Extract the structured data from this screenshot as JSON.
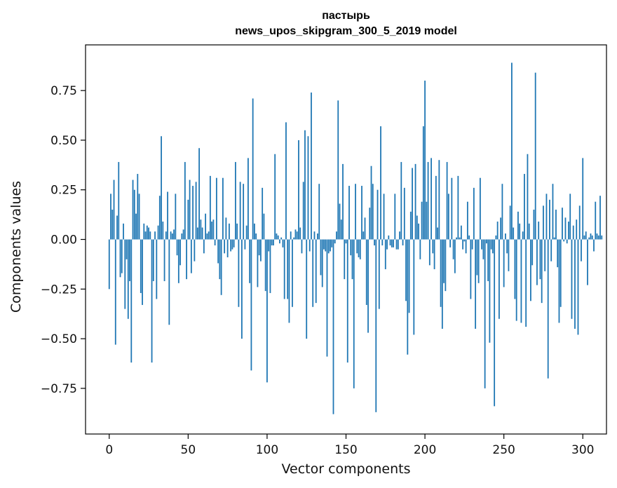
{
  "chart_data": {
    "type": "bar",
    "title": "пастырь",
    "subtitle": "news_upos_skipgram_300_5_2019 model",
    "xlabel": "Vector components",
    "ylabel": "Components values",
    "xlim": [
      -15,
      315
    ],
    "ylim": [
      -0.98,
      0.98
    ],
    "xticks": [
      0,
      50,
      100,
      150,
      200,
      250,
      300
    ],
    "yticks": [
      -0.75,
      -0.5,
      -0.25,
      0.0,
      0.25,
      0.5,
      0.75
    ],
    "ytick_labels": [
      "−0.75",
      "−0.50",
      "−0.25",
      "0.00",
      "0.25",
      "0.50",
      "0.75"
    ],
    "bar_color": "#1f77b4",
    "grid": false,
    "values": [
      -0.25,
      0.23,
      0.15,
      0.3,
      -0.53,
      0.12,
      0.39,
      -0.19,
      -0.17,
      0.08,
      -0.35,
      -0.1,
      -0.4,
      -0.21,
      -0.62,
      0.3,
      0.25,
      0.13,
      0.33,
      0.23,
      -0.27,
      -0.33,
      0.08,
      0.04,
      0.07,
      0.06,
      0.04,
      -0.62,
      -0.21,
      0.04,
      -0.3,
      0.07,
      0.22,
      0.52,
      0.09,
      -0.21,
      0.04,
      0.24,
      -0.43,
      0.04,
      0.03,
      0.05,
      0.23,
      -0.08,
      -0.22,
      -0.13,
      0.03,
      0.05,
      0.39,
      -0.2,
      0.2,
      0.3,
      -0.17,
      0.27,
      -0.11,
      0.29,
      0.06,
      0.46,
      0.1,
      0.06,
      -0.07,
      0.13,
      0.03,
      0.04,
      0.32,
      0.09,
      0.1,
      -0.03,
      0.31,
      -0.12,
      -0.2,
      -0.28,
      0.31,
      -0.07,
      0.11,
      -0.09,
      0.08,
      -0.06,
      -0.05,
      -0.04,
      0.39,
      0.08,
      -0.34,
      0.29,
      -0.5,
      0.28,
      -0.05,
      0.07,
      0.41,
      -0.22,
      -0.66,
      0.71,
      0.08,
      0.03,
      -0.24,
      -0.08,
      -0.11,
      0.26,
      0.13,
      -0.26,
      -0.72,
      -0.06,
      -0.27,
      -0.03,
      -0.03,
      0.43,
      0.03,
      0.02,
      -0.02,
      0.01,
      -0.04,
      -0.3,
      0.59,
      -0.3,
      -0.42,
      0.04,
      -0.34,
      0.01,
      0.05,
      0.04,
      0.5,
      0.06,
      -0.07,
      0.29,
      0.55,
      -0.5,
      0.52,
      -0.06,
      0.74,
      -0.34,
      0.04,
      -0.32,
      0.03,
      0.28,
      -0.18,
      -0.24,
      -0.05,
      -0.06,
      -0.59,
      -0.07,
      -0.06,
      -0.04,
      -0.88,
      -0.02,
      0.04,
      0.7,
      0.18,
      0.1,
      0.38,
      -0.2,
      -0.02,
      -0.62,
      0.27,
      -0.08,
      -0.2,
      -0.75,
      0.28,
      -0.07,
      -0.09,
      -0.1,
      0.27,
      0.04,
      0.11,
      -0.33,
      -0.47,
      0.16,
      0.37,
      0.28,
      -0.03,
      -0.87,
      0.25,
      -0.35,
      0.57,
      -0.03,
      0.23,
      -0.15,
      -0.05,
      0.02,
      -0.03,
      -0.04,
      -0.04,
      0.23,
      -0.05,
      -0.05,
      0.04,
      0.39,
      -0.03,
      0.26,
      -0.31,
      -0.58,
      -0.37,
      0.14,
      0.36,
      -0.48,
      0.38,
      0.12,
      0.08,
      -0.1,
      0.19,
      0.57,
      0.8,
      0.19,
      0.39,
      -0.13,
      0.41,
      -0.07,
      -0.15,
      0.32,
      0.06,
      0.4,
      -0.34,
      -0.45,
      -0.22,
      -0.26,
      0.39,
      0.23,
      -0.04,
      0.31,
      -0.1,
      -0.17,
      0.01,
      0.32,
      0.01,
      0.07,
      -0.05,
      -0.01,
      -0.07,
      0.19,
      0.02,
      -0.3,
      -0.05,
      0.26,
      -0.45,
      -0.18,
      -0.22,
      0.31,
      -0.05,
      -0.1,
      -0.75,
      -0.02,
      -0.21,
      -0.52,
      -0.05,
      -0.07,
      -0.84,
      0.02,
      0.09,
      -0.4,
      0.11,
      0.28,
      -0.24,
      0.03,
      -0.07,
      -0.16,
      0.17,
      0.89,
      0.06,
      -0.3,
      -0.41,
      0.14,
      0.08,
      -0.42,
      0.04,
      0.33,
      -0.44,
      0.43,
      0.08,
      -0.31,
      -0.13,
      0.15,
      0.84,
      -0.23,
      0.09,
      -0.2,
      -0.32,
      0.17,
      -0.16,
      0.23,
      -0.7,
      0.2,
      -0.11,
      0.28,
      0.01,
      0.15,
      -0.14,
      -0.42,
      -0.34,
      0.16,
      -0.01,
      0.11,
      -0.02,
      0.09,
      0.23,
      -0.4,
      0.07,
      -0.45,
      0.1,
      -0.48,
      0.17,
      -0.11,
      0.41,
      0.02,
      0.04,
      -0.23,
      0.01,
      0.03,
      0.02,
      -0.06,
      0.19,
      0.03,
      0.02,
      0.22,
      0.02
    ]
  }
}
